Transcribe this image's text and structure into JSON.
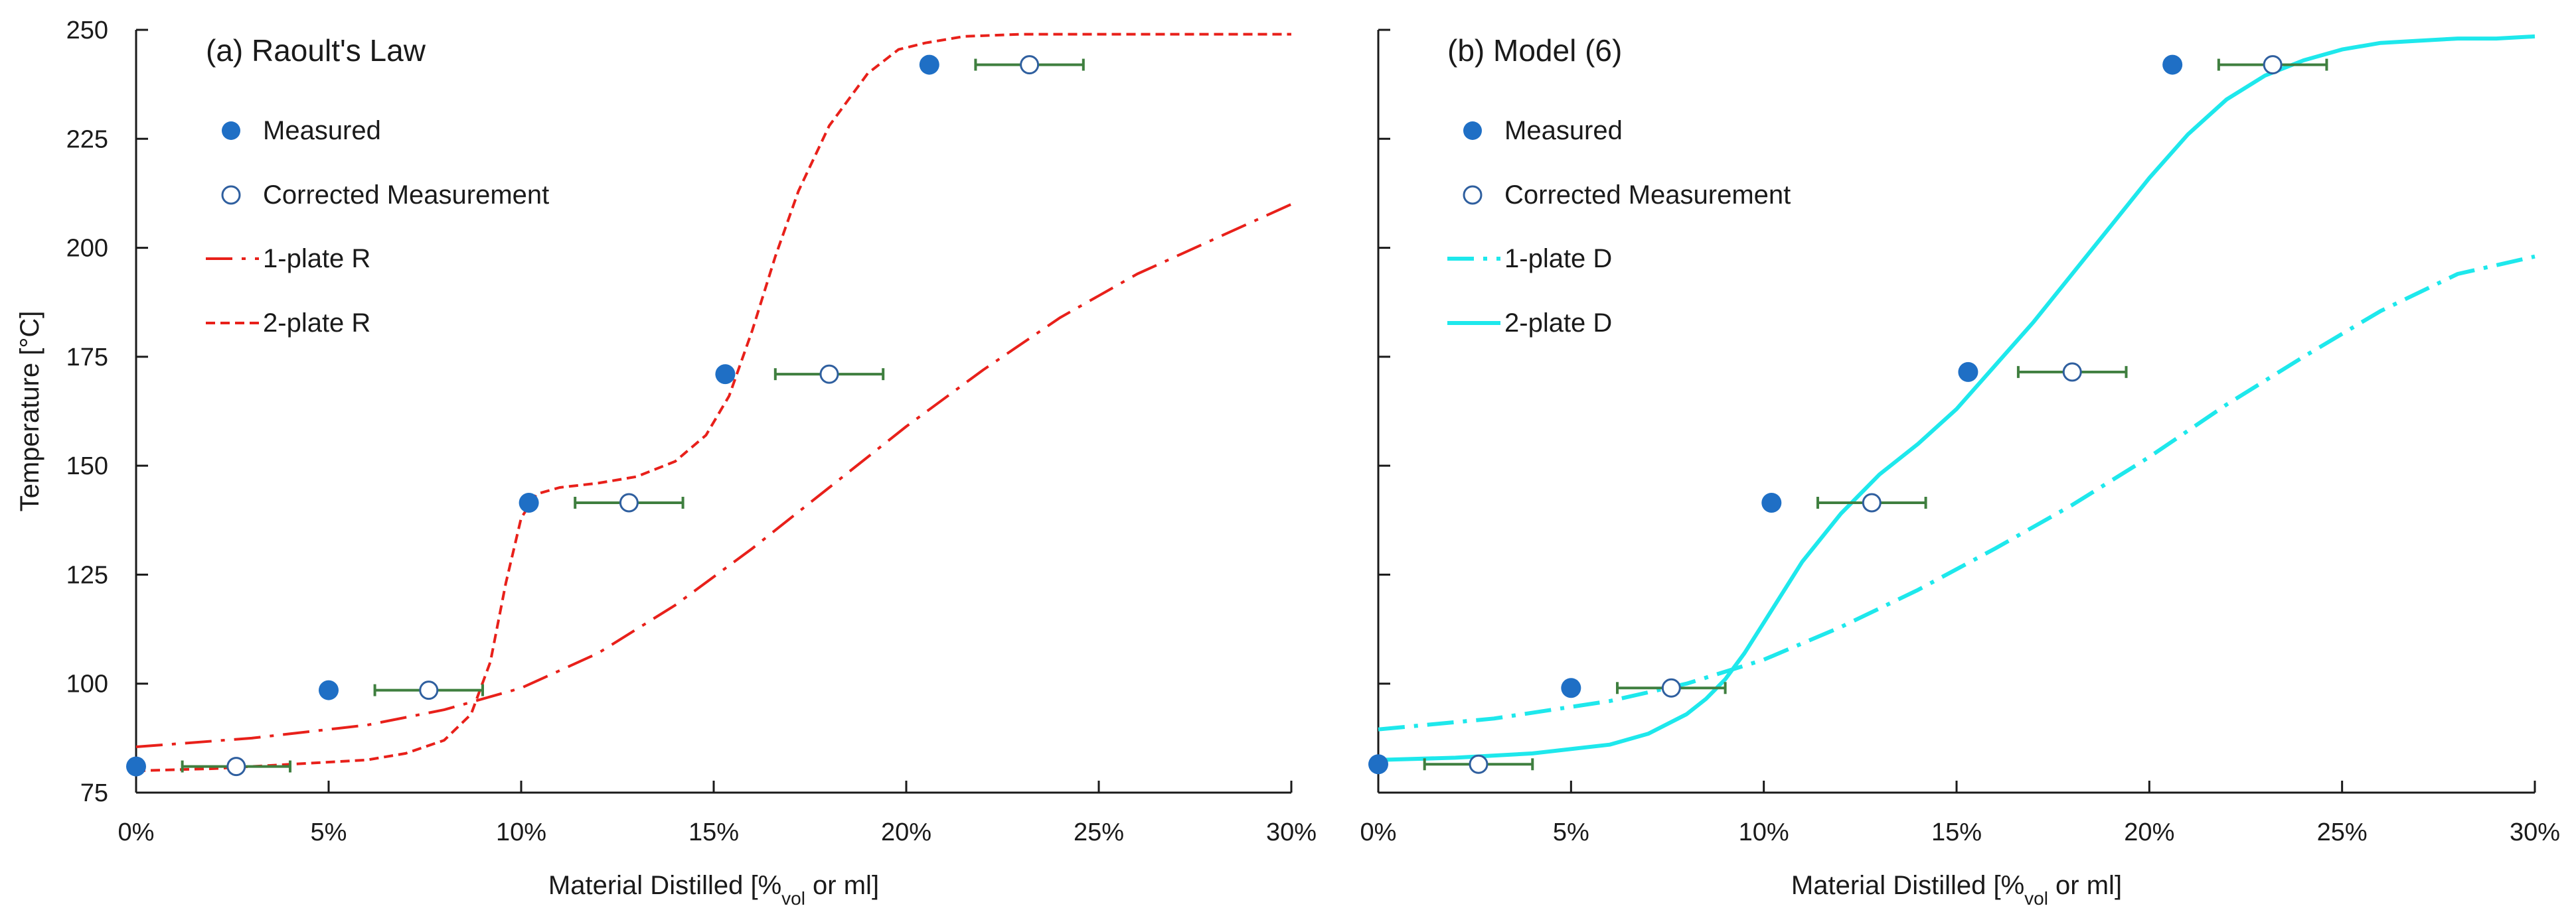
{
  "chart_data": [
    {
      "type": "line",
      "title": "(a) Raoult's Law",
      "xlabel_main": "Material Distilled [%",
      "xlabel_sub": "vol",
      "xlabel_tail": " or ml]",
      "ylabel": "Temperature [°C]",
      "xlim": [
        0,
        30
      ],
      "ylim": [
        75,
        250
      ],
      "xticks": [
        0,
        5,
        10,
        15,
        20,
        25,
        30
      ],
      "xtick_labels": [
        "0%",
        "5%",
        "10%",
        "15%",
        "20%",
        "25%",
        "30%"
      ],
      "yticks": [
        75,
        100,
        125,
        150,
        175,
        200,
        225,
        250
      ],
      "ytick_labels": [
        "75",
        "100",
        "125",
        "150",
        "175",
        "200",
        "225",
        "250"
      ],
      "legend": [
        {
          "label": "Measured",
          "style": "filled-marker"
        },
        {
          "label": "Corrected Measurement",
          "style": "open-marker"
        },
        {
          "label": "1-plate R",
          "style": "dash-dot"
        },
        {
          "label": "2-plate R",
          "style": "dashed"
        }
      ],
      "series": [
        {
          "name": "Measured",
          "kind": "scatter",
          "color": "#1f6fc5",
          "x": [
            0,
            5,
            10.2,
            15.3,
            20.6
          ],
          "y": [
            81,
            98.5,
            141.5,
            171,
            242
          ]
        },
        {
          "name": "Corrected Measurement",
          "kind": "scatter-open",
          "color": "#2f5f9f",
          "x": [
            2.6,
            7.6,
            12.8,
            18,
            23.2
          ],
          "y": [
            81,
            98.5,
            141.5,
            171,
            242
          ],
          "xerr_low": [
            1.2,
            6.2,
            11.4,
            16.6,
            21.8
          ],
          "xerr_high": [
            4,
            9,
            14.2,
            19.4,
            24.6
          ],
          "errcolor": "#3f7f3f"
        },
        {
          "name": "1-plate R",
          "kind": "line",
          "dash": "dash-dot",
          "color": "#e8201a",
          "width": 4,
          "x": [
            0,
            3,
            6,
            8,
            10,
            12,
            14,
            16,
            18,
            20,
            22,
            24,
            26,
            28,
            30
          ],
          "y": [
            85.5,
            87.5,
            90.5,
            94,
            99,
            107,
            118,
            131,
            145,
            159,
            172,
            184,
            194,
            202,
            210
          ]
        },
        {
          "name": "2-plate R",
          "kind": "line",
          "dash": "dashed",
          "color": "#e8201a",
          "width": 4,
          "x": [
            0,
            2,
            4,
            6,
            7,
            8,
            8.7,
            9.2,
            9.6,
            10,
            10.4,
            11,
            12,
            13,
            14,
            14.8,
            15.4,
            16,
            16.6,
            17.2,
            18,
            19,
            19.8,
            20.5,
            21.5,
            23,
            25,
            30
          ],
          "y": [
            80,
            80.5,
            81.5,
            82.5,
            84,
            87,
            93,
            105,
            123,
            138,
            143.5,
            145,
            146,
            147.5,
            151,
            157,
            166,
            181,
            198,
            213,
            228,
            240,
            245.5,
            247,
            248.5,
            249,
            249,
            249
          ]
        }
      ]
    },
    {
      "type": "line",
      "title": "(b) Model (6)",
      "xlabel_main": "Material Distilled [%",
      "xlabel_sub": "vol",
      "xlabel_tail": " or ml]",
      "xlim": [
        0,
        30
      ],
      "ylim": [
        75,
        250
      ],
      "xticks": [
        0,
        5,
        10,
        15,
        20,
        25,
        30
      ],
      "xtick_labels": [
        "0%",
        "5%",
        "10%",
        "15%",
        "20%",
        "25%",
        "30%"
      ],
      "yticks": [
        75,
        100,
        125,
        150,
        175,
        200,
        225,
        250
      ],
      "legend": [
        {
          "label": "Measured",
          "style": "filled-marker"
        },
        {
          "label": "Corrected Measurement",
          "style": "open-marker"
        },
        {
          "label": "1-plate D",
          "style": "dash-dot"
        },
        {
          "label": "2-plate D",
          "style": "solid"
        }
      ],
      "series": [
        {
          "name": "Measured",
          "kind": "scatter",
          "color": "#1f6fc5",
          "x": [
            0,
            5,
            10.2,
            15.3,
            20.6
          ],
          "y": [
            81.5,
            99,
            141.5,
            171.5,
            242
          ]
        },
        {
          "name": "Corrected Measurement",
          "kind": "scatter-open",
          "color": "#2f5f9f",
          "x": [
            2.6,
            7.6,
            12.8,
            18,
            23.2
          ],
          "y": [
            81.5,
            99,
            141.5,
            171.5,
            242
          ],
          "xerr_low": [
            1.2,
            6.2,
            11.4,
            16.6,
            21.8
          ],
          "xerr_high": [
            4,
            9,
            14.2,
            19.4,
            24.6
          ],
          "errcolor": "#3f7f3f"
        },
        {
          "name": "1-plate D",
          "kind": "line",
          "dash": "dash-dot",
          "color": "#1ee8ec",
          "width": 6,
          "x": [
            0,
            3,
            6,
            8,
            10,
            12,
            14,
            16,
            18,
            20,
            22,
            24,
            26,
            28,
            30
          ],
          "y": [
            89.5,
            92,
            96,
            100,
            105.5,
            113,
            121.5,
            131,
            141,
            152,
            164,
            175,
            185.5,
            194,
            198
          ]
        },
        {
          "name": "2-plate D",
          "kind": "line",
          "dash": "solid",
          "color": "#1ee8ec",
          "width": 6,
          "x": [
            0,
            2,
            4,
            6,
            7,
            8,
            8.5,
            9,
            9.5,
            10,
            10.5,
            11,
            12,
            13,
            14,
            15,
            16,
            17,
            18,
            19,
            20,
            21,
            22,
            23,
            24,
            25,
            26,
            27,
            28,
            29,
            30
          ],
          "y": [
            82.5,
            83,
            84,
            86,
            88.5,
            93,
            96.5,
            101,
            107,
            114,
            121,
            128,
            139,
            148,
            155,
            163,
            173,
            183,
            194,
            205,
            216,
            226,
            234,
            239.5,
            243,
            245.5,
            247,
            247.5,
            248,
            248,
            248.5
          ]
        }
      ]
    }
  ]
}
